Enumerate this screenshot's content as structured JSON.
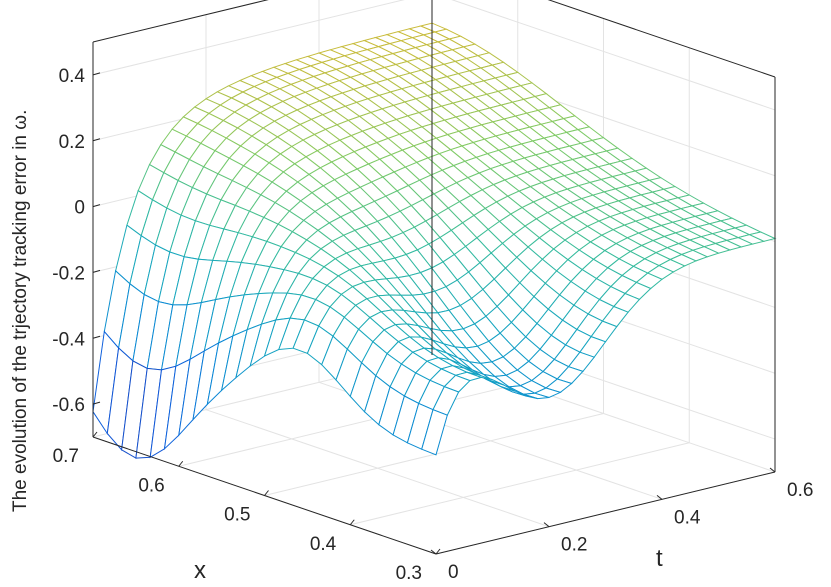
{
  "chart_data": {
    "type": "surface",
    "xlabel": "x",
    "ylabel": "t",
    "zlabel": "The evolution of the trjectory tracking error in ω.",
    "xlim": [
      0.3,
      0.7
    ],
    "ylim": [
      0,
      0.6
    ],
    "zlim": [
      -0.7,
      0.5
    ],
    "x_ticks": [
      "0.7",
      "0.6",
      "0.5",
      "0.4",
      "0.3"
    ],
    "y_ticks": [
      "0",
      "0.2",
      "0.4",
      "0.6"
    ],
    "z_ticks": [
      "0.4",
      "0.2",
      "0",
      "-0.2",
      "-0.4",
      "-0.6"
    ],
    "grid": true,
    "colormap": "parula",
    "colors": {
      "low": "#3e26a8",
      "mid": "#19b3c6",
      "high": "#f9fb14"
    },
    "surface_profile": {
      "description_points_t0_edge": [
        {
          "x": 0.7,
          "z": -0.68
        },
        {
          "x": 0.65,
          "z": -0.72
        },
        {
          "x": 0.6,
          "z": -0.65
        },
        {
          "x": 0.5,
          "z": -0.45
        },
        {
          "x": 0.45,
          "z": -0.38
        },
        {
          "x": 0.4,
          "z": -0.45
        },
        {
          "x": 0.35,
          "z": -0.55
        },
        {
          "x": 0.3,
          "z": -0.55
        }
      ],
      "peak_ridge_x07": [
        {
          "t": 0.05,
          "z": -0.05
        },
        {
          "t": 0.15,
          "z": 0.2
        },
        {
          "t": 0.3,
          "z": 0.3
        },
        {
          "t": 0.45,
          "z": 0.3
        },
        {
          "t": 0.6,
          "z": 0.25
        }
      ],
      "far_edge_x03": [
        {
          "t": 0.05,
          "z": 0.05
        },
        {
          "t": 0.2,
          "z": -0.3
        },
        {
          "t": 0.4,
          "z": -0.1
        },
        {
          "t": 0.6,
          "z": 0.0
        }
      ]
    }
  }
}
